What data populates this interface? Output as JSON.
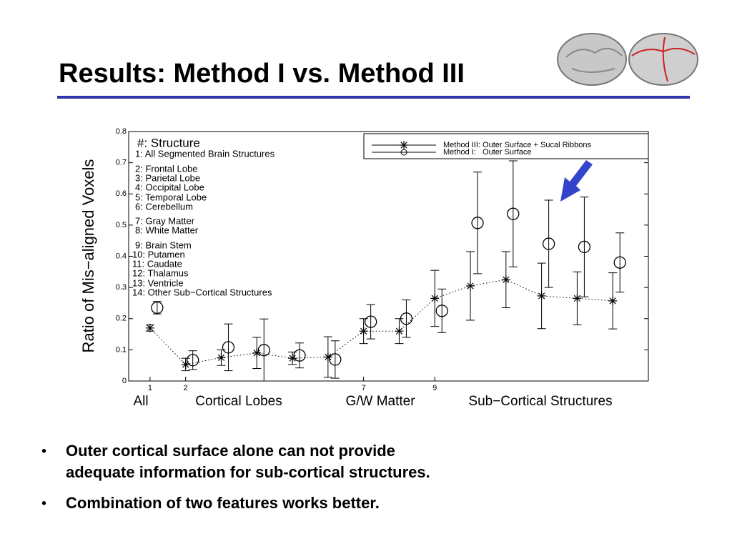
{
  "slide": {
    "title": "Results: Method I vs. Method III",
    "bullets": [
      "Outer cortical surface alone can not provide adequate information for sub-cortical structures.",
      "Combination of two features works better."
    ]
  },
  "chart_data": {
    "type": "errorbar",
    "y_label": "Ratio of Mis−aligned Voxels",
    "structure_heading": "#: Structure",
    "structures": [
      "1: All Segmented Brain Structures",
      "2: Frontal Lobe",
      "3: Parietal Lobe",
      "4: Occipital Lobe",
      "5: Temporal Lobe",
      "6: Cerebellum",
      "7: Gray Matter",
      "8: White Matter",
      "9: Brain Stem",
      "10: Putamen",
      "11: Caudate",
      "12: Thalamus",
      "13: Ventricle",
      "14: Other Sub−Cortical Structures"
    ],
    "group_labels": [
      "All",
      "Cortical Lobes",
      "G/W Matter",
      "Sub−Cortical Structures"
    ],
    "x": [
      1,
      2,
      3,
      4,
      5,
      6,
      7,
      8,
      9,
      10,
      11,
      12,
      13,
      14
    ],
    "xlim": [
      0.4,
      15
    ],
    "xticks": [
      1,
      2,
      7,
      9
    ],
    "ylim": [
      0,
      0.8
    ],
    "yticks": [
      0,
      0.1,
      0.2,
      0.3,
      0.4,
      0.5,
      0.6,
      0.7,
      0.8
    ],
    "series": [
      {
        "name": "Method III: Outer Surface + Sucal Ribbons",
        "color": "#000000",
        "marker": "star",
        "line": "dotted",
        "values": [
          0.17,
          0.053,
          0.075,
          0.09,
          0.073,
          0.077,
          0.16,
          0.16,
          0.265,
          0.305,
          0.325,
          0.273,
          0.265,
          0.257
        ],
        "errors": [
          0.01,
          0.02,
          0.025,
          0.05,
          0.02,
          0.065,
          0.04,
          0.04,
          0.09,
          0.11,
          0.09,
          0.105,
          0.085,
          0.09
        ]
      },
      {
        "name": "Method I:   Outer Surface",
        "color": "#000000",
        "marker": "circle",
        "values": [
          0.235,
          0.067,
          0.108,
          0.099,
          0.082,
          0.069,
          0.19,
          0.2,
          0.225,
          0.507,
          0.536,
          0.44,
          0.43,
          0.38
        ],
        "errors": [
          0.02,
          0.03,
          0.075,
          0.1,
          0.04,
          0.06,
          0.055,
          0.06,
          0.07,
          0.163,
          0.17,
          0.14,
          0.16,
          0.095
        ]
      }
    ]
  }
}
